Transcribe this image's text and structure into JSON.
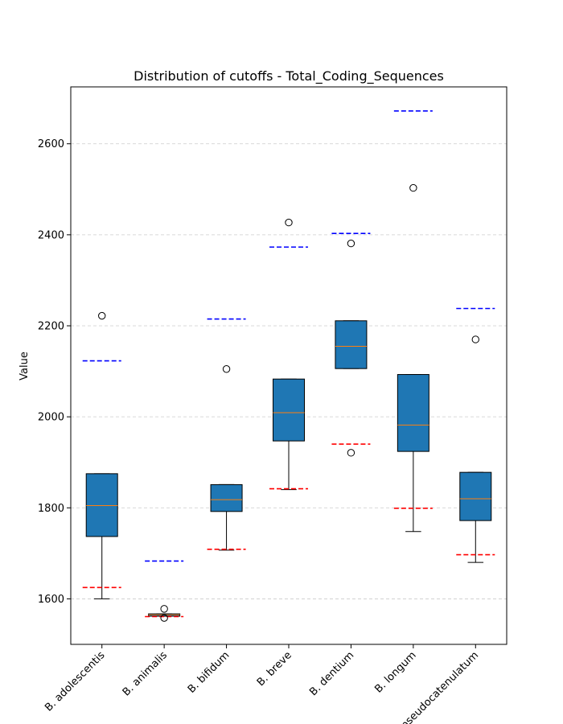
{
  "chart_data": {
    "type": "box",
    "title": "Distribution of cutoffs - Total_Coding_Sequences",
    "xlabel": "",
    "ylabel": "Value",
    "ylim": [
      1500,
      2725
    ],
    "yticks": [
      1600,
      1800,
      2000,
      2200,
      2400,
      2600
    ],
    "grid": "horizontal dashed",
    "box_color": "#1f77b4",
    "median_color": "#ff7f0e",
    "upper_cutoff_color": "#0000ff",
    "lower_cutoff_color": "#ff0000",
    "categories": [
      "B. adolescentis",
      "B. animalis",
      "B. bifidum",
      "B. breve",
      "B. dentium",
      "B. longum",
      "B. pseudocatenulatum"
    ],
    "boxes": [
      {
        "whisker_low": 1600,
        "q1": 1737,
        "median": 1805,
        "q3": 1875,
        "whisker_high": 1875,
        "outliers": [
          2222
        ],
        "lower_cutoff": 1625,
        "upper_cutoff": 2123
      },
      {
        "whisker_low": 1562,
        "q1": 1562,
        "median": 1565,
        "q3": 1567,
        "whisker_high": 1567,
        "outliers": [
          1558,
          1578
        ],
        "lower_cutoff": 1561,
        "upper_cutoff": 1683
      },
      {
        "whisker_low": 1707,
        "q1": 1792,
        "median": 1818,
        "q3": 1851,
        "whisker_high": 1851,
        "outliers": [
          2105
        ],
        "lower_cutoff": 1709,
        "upper_cutoff": 2215
      },
      {
        "whisker_low": 1840,
        "q1": 1947,
        "median": 2009,
        "q3": 2083,
        "whisker_high": 2083,
        "outliers": [
          2427
        ],
        "lower_cutoff": 1842,
        "upper_cutoff": 2373
      },
      {
        "whisker_low": 2106,
        "q1": 2106,
        "median": 2155,
        "q3": 2211,
        "whisker_high": 2211,
        "outliers": [
          1921,
          2381
        ],
        "lower_cutoff": 1940,
        "upper_cutoff": 2403
      },
      {
        "whisker_low": 1748,
        "q1": 1924,
        "median": 1982,
        "q3": 2093,
        "whisker_high": 2093,
        "outliers": [
          2503
        ],
        "lower_cutoff": 1799,
        "upper_cutoff": 2672
      },
      {
        "whisker_low": 1680,
        "q1": 1772,
        "median": 1820,
        "q3": 1878,
        "whisker_high": 1878,
        "outliers": [
          2170
        ],
        "lower_cutoff": 1697,
        "upper_cutoff": 2238
      }
    ]
  }
}
